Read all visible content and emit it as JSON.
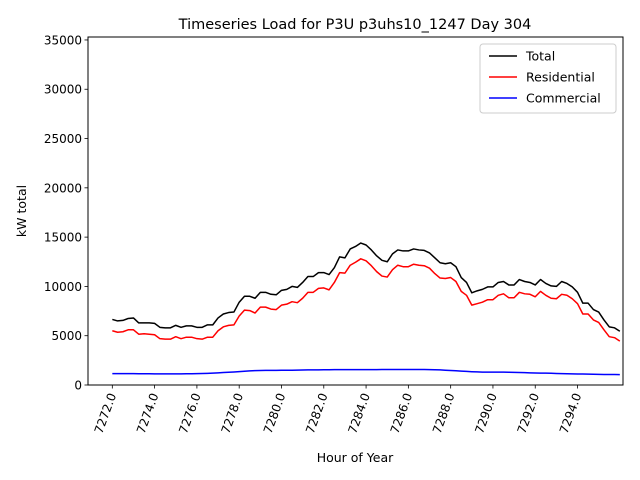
{
  "chart_data": {
    "type": "line",
    "title": "Timeseries Load for P3U p3uhs10_1247  Day 304",
    "xlabel": "Hour of Year",
    "ylabel": "kW total",
    "xlim": [
      7270.85,
      7296.15
    ],
    "ylim": [
      0,
      35300
    ],
    "xticks": [
      7272,
      7274,
      7276,
      7278,
      7280,
      7282,
      7284,
      7286,
      7288,
      7290,
      7292,
      7294
    ],
    "xtick_labels": [
      "7272.0",
      "7274.0",
      "7276.0",
      "7278.0",
      "7280.0",
      "7282.0",
      "7284.0",
      "7286.0",
      "7288.0",
      "7290.0",
      "7292.0",
      "7294.0"
    ],
    "yticks": [
      0,
      5000,
      10000,
      15000,
      20000,
      25000,
      30000,
      35000
    ],
    "ytick_labels": [
      "0",
      "5000",
      "10000",
      "15000",
      "20000",
      "25000",
      "30000",
      "35000"
    ],
    "grid": false,
    "legend_position": "top-right",
    "x_start": 7272.0,
    "x_step": 0.25,
    "series": [
      {
        "name": "Total",
        "color": "#000000",
        "values": [
          6650,
          6500,
          6550,
          6750,
          6800,
          6300,
          6300,
          6300,
          6250,
          5850,
          5800,
          5800,
          6050,
          5850,
          6000,
          6000,
          5850,
          5850,
          6100,
          6100,
          6800,
          7200,
          7350,
          7400,
          8400,
          9000,
          9000,
          8800,
          9400,
          9400,
          9200,
          9150,
          9600,
          9700,
          10000,
          9900,
          10400,
          11000,
          11000,
          11400,
          11400,
          11200,
          11900,
          13000,
          12900,
          13800,
          14050,
          14400,
          14200,
          13700,
          13100,
          12650,
          12500,
          13300,
          13700,
          13600,
          13600,
          13800,
          13700,
          13650,
          13400,
          12900,
          12400,
          12300,
          12400,
          12000,
          10900,
          10400,
          9350,
          9550,
          9700,
          9950,
          9950,
          10400,
          10500,
          10150,
          10150,
          10700,
          10500,
          10400,
          10150,
          10700,
          10300,
          10050,
          10000,
          10500,
          10300,
          9950,
          9400,
          8300,
          8300,
          7650,
          7400,
          6600,
          5900,
          5800,
          5450
        ]
      },
      {
        "name": "Residential",
        "color": "#ff0000",
        "values": [
          5500,
          5350,
          5400,
          5600,
          5600,
          5150,
          5200,
          5150,
          5100,
          4700,
          4650,
          4650,
          4900,
          4700,
          4850,
          4850,
          4700,
          4650,
          4850,
          4850,
          5500,
          5900,
          6050,
          6100,
          7000,
          7600,
          7550,
          7300,
          7900,
          7900,
          7700,
          7650,
          8100,
          8200,
          8450,
          8350,
          8800,
          9400,
          9400,
          9800,
          9850,
          9650,
          10400,
          11400,
          11350,
          12150,
          12450,
          12800,
          12600,
          12100,
          11500,
          11050,
          10950,
          11700,
          12150,
          12000,
          12000,
          12250,
          12150,
          12100,
          11850,
          11300,
          10850,
          10800,
          10900,
          10500,
          9500,
          9100,
          8100,
          8250,
          8400,
          8650,
          8650,
          9100,
          9250,
          8850,
          8850,
          9400,
          9250,
          9200,
          8950,
          9500,
          9100,
          8800,
          8750,
          9200,
          9100,
          8750,
          8250,
          7200,
          7200,
          6600,
          6350,
          5600,
          4900,
          4800,
          4450
        ]
      },
      {
        "name": "Commercial",
        "color": "#0000ff",
        "values": [
          1150,
          1150,
          1150,
          1150,
          1150,
          1140,
          1140,
          1140,
          1130,
          1130,
          1130,
          1130,
          1130,
          1130,
          1140,
          1140,
          1150,
          1160,
          1180,
          1200,
          1230,
          1270,
          1290,
          1320,
          1360,
          1400,
          1430,
          1460,
          1470,
          1480,
          1480,
          1480,
          1490,
          1500,
          1500,
          1510,
          1520,
          1530,
          1540,
          1540,
          1550,
          1550,
          1560,
          1560,
          1560,
          1560,
          1560,
          1560,
          1560,
          1560,
          1560,
          1570,
          1570,
          1570,
          1570,
          1570,
          1570,
          1570,
          1570,
          1570,
          1560,
          1550,
          1530,
          1500,
          1470,
          1440,
          1410,
          1380,
          1350,
          1330,
          1310,
          1300,
          1300,
          1300,
          1300,
          1290,
          1280,
          1270,
          1250,
          1230,
          1220,
          1210,
          1200,
          1190,
          1170,
          1150,
          1140,
          1130,
          1120,
          1110,
          1100,
          1090,
          1080,
          1070,
          1060,
          1060,
          1050
        ]
      }
    ]
  }
}
